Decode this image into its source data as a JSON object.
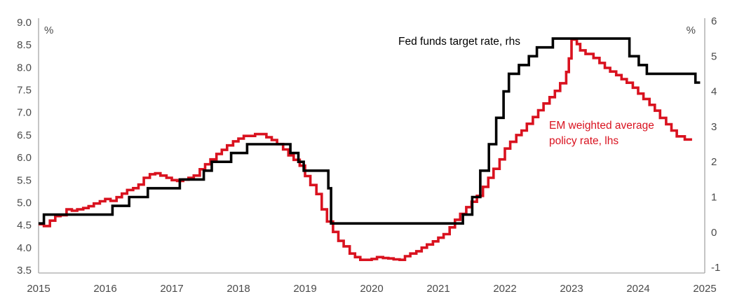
{
  "chart_data": {
    "type": "line",
    "title": "",
    "grid": false,
    "legend_position": "inline-annotations",
    "colors": {
      "background": "#ffffff",
      "axis_line": "#a6a6a6",
      "axis_text": "#4a4a4a"
    },
    "x_axis": {
      "labels": [
        "2015",
        "2016",
        "2017",
        "2018",
        "2019",
        "2020",
        "2021",
        "2022",
        "2023",
        "2024",
        "2025"
      ],
      "min": 2015,
      "max": 2025
    },
    "left_axis": {
      "unit": "%",
      "labels": [
        "9.0",
        "8.5",
        "8.0",
        "7.5",
        "7.0",
        "6.5",
        "6.0",
        "5.5",
        "5.0",
        "4.5",
        "4.0",
        "3.5"
      ],
      "min": 3.5,
      "max": 9.0
    },
    "right_axis": {
      "unit": "%",
      "labels": [
        "6",
        "5",
        "4",
        "3",
        "2",
        "1",
        "0",
        "-1"
      ],
      "min": -1,
      "max": 6
    },
    "series": [
      {
        "id": "fed-funds",
        "name": "Fed funds target rate, rhs",
        "axis": "right",
        "color": "#000000",
        "style": "step",
        "points": [
          [
            2015.0,
            0.25
          ],
          [
            2015.08,
            0.5
          ],
          [
            2016.11,
            0.75
          ],
          [
            2016.36,
            1.0
          ],
          [
            2016.64,
            1.25
          ],
          [
            2017.12,
            1.5
          ],
          [
            2017.48,
            1.75
          ],
          [
            2017.6,
            2.0
          ],
          [
            2017.89,
            2.25
          ],
          [
            2018.13,
            2.5
          ],
          [
            2018.78,
            2.25
          ],
          [
            2018.9,
            2.0
          ],
          [
            2018.98,
            1.75
          ],
          [
            2019.35,
            1.25
          ],
          [
            2019.39,
            0.25
          ],
          [
            2021.37,
            0.5
          ],
          [
            2021.51,
            1.0
          ],
          [
            2021.63,
            1.75
          ],
          [
            2021.76,
            2.5
          ],
          [
            2021.87,
            3.25
          ],
          [
            2021.98,
            4.0
          ],
          [
            2022.06,
            4.5
          ],
          [
            2022.21,
            4.75
          ],
          [
            2022.36,
            5.0
          ],
          [
            2022.48,
            5.25
          ],
          [
            2022.72,
            5.5
          ],
          [
            2023.87,
            5.0
          ],
          [
            2024.01,
            4.75
          ],
          [
            2024.13,
            4.5
          ],
          [
            2024.86,
            4.25
          ],
          [
            2024.93,
            4.25
          ]
        ]
      },
      {
        "id": "em-policy",
        "name": "EM weighted average policy rate, lhs",
        "label_lines": [
          "EM weighted average",
          "policy rate, lhs"
        ],
        "axis": "left",
        "color": "#d9121f",
        "style": "step",
        "points": [
          [
            2015.0,
            4.52
          ],
          [
            2015.08,
            4.48
          ],
          [
            2015.17,
            4.6
          ],
          [
            2015.25,
            4.7
          ],
          [
            2015.33,
            4.72
          ],
          [
            2015.42,
            4.85
          ],
          [
            2015.5,
            4.82
          ],
          [
            2015.58,
            4.85
          ],
          [
            2015.67,
            4.88
          ],
          [
            2015.75,
            4.92
          ],
          [
            2015.83,
            4.98
          ],
          [
            2015.92,
            5.03
          ],
          [
            2016.0,
            5.08
          ],
          [
            2016.08,
            5.04
          ],
          [
            2016.17,
            5.12
          ],
          [
            2016.25,
            5.2
          ],
          [
            2016.33,
            5.28
          ],
          [
            2016.42,
            5.32
          ],
          [
            2016.5,
            5.4
          ],
          [
            2016.58,
            5.55
          ],
          [
            2016.67,
            5.63
          ],
          [
            2016.75,
            5.65
          ],
          [
            2016.83,
            5.6
          ],
          [
            2016.92,
            5.55
          ],
          [
            2017.0,
            5.5
          ],
          [
            2017.08,
            5.48
          ],
          [
            2017.17,
            5.51
          ],
          [
            2017.25,
            5.55
          ],
          [
            2017.33,
            5.6
          ],
          [
            2017.42,
            5.74
          ],
          [
            2017.5,
            5.85
          ],
          [
            2017.58,
            5.96
          ],
          [
            2017.67,
            6.08
          ],
          [
            2017.75,
            6.17
          ],
          [
            2017.83,
            6.27
          ],
          [
            2017.92,
            6.36
          ],
          [
            2018.0,
            6.42
          ],
          [
            2018.08,
            6.48
          ],
          [
            2018.17,
            6.48
          ],
          [
            2018.25,
            6.52
          ],
          [
            2018.33,
            6.52
          ],
          [
            2018.42,
            6.45
          ],
          [
            2018.5,
            6.39
          ],
          [
            2018.58,
            6.3
          ],
          [
            2018.67,
            6.18
          ],
          [
            2018.75,
            6.05
          ],
          [
            2018.83,
            5.95
          ],
          [
            2018.92,
            5.82
          ],
          [
            2019.0,
            5.59
          ],
          [
            2019.08,
            5.39
          ],
          [
            2019.17,
            5.19
          ],
          [
            2019.25,
            4.85
          ],
          [
            2019.33,
            4.58
          ],
          [
            2019.42,
            4.35
          ],
          [
            2019.5,
            4.15
          ],
          [
            2019.58,
            4.03
          ],
          [
            2019.67,
            3.87
          ],
          [
            2019.75,
            3.79
          ],
          [
            2019.83,
            3.73
          ],
          [
            2019.92,
            3.73
          ],
          [
            2020.0,
            3.75
          ],
          [
            2020.08,
            3.79
          ],
          [
            2020.17,
            3.77
          ],
          [
            2020.25,
            3.76
          ],
          [
            2020.33,
            3.74
          ],
          [
            2020.42,
            3.73
          ],
          [
            2020.5,
            3.81
          ],
          [
            2020.58,
            3.87
          ],
          [
            2020.67,
            3.92
          ],
          [
            2020.75,
            4.0
          ],
          [
            2020.83,
            4.07
          ],
          [
            2020.92,
            4.14
          ],
          [
            2021.0,
            4.22
          ],
          [
            2021.08,
            4.3
          ],
          [
            2021.17,
            4.45
          ],
          [
            2021.25,
            4.62
          ],
          [
            2021.33,
            4.75
          ],
          [
            2021.42,
            4.9
          ],
          [
            2021.5,
            5.02
          ],
          [
            2021.58,
            5.15
          ],
          [
            2021.67,
            5.35
          ],
          [
            2021.75,
            5.55
          ],
          [
            2021.83,
            5.75
          ],
          [
            2021.92,
            5.96
          ],
          [
            2022.0,
            6.2
          ],
          [
            2022.08,
            6.35
          ],
          [
            2022.17,
            6.5
          ],
          [
            2022.25,
            6.6
          ],
          [
            2022.33,
            6.75
          ],
          [
            2022.42,
            6.9
          ],
          [
            2022.5,
            7.05
          ],
          [
            2022.58,
            7.2
          ],
          [
            2022.67,
            7.34
          ],
          [
            2022.75,
            7.48
          ],
          [
            2022.83,
            7.65
          ],
          [
            2022.92,
            7.9
          ],
          [
            2022.96,
            8.2
          ],
          [
            2023.0,
            8.62
          ],
          [
            2023.08,
            8.52
          ],
          [
            2023.13,
            8.38
          ],
          [
            2023.21,
            8.3
          ],
          [
            2023.33,
            8.21
          ],
          [
            2023.42,
            8.1
          ],
          [
            2023.5,
            7.99
          ],
          [
            2023.58,
            7.91
          ],
          [
            2023.67,
            7.83
          ],
          [
            2023.75,
            7.74
          ],
          [
            2023.83,
            7.66
          ],
          [
            2023.92,
            7.55
          ],
          [
            2024.0,
            7.42
          ],
          [
            2024.08,
            7.3
          ],
          [
            2024.17,
            7.17
          ],
          [
            2024.25,
            7.04
          ],
          [
            2024.33,
            6.88
          ],
          [
            2024.42,
            6.74
          ],
          [
            2024.5,
            6.6
          ],
          [
            2024.58,
            6.47
          ],
          [
            2024.7,
            6.4
          ],
          [
            2024.81,
            6.4
          ]
        ]
      }
    ]
  }
}
